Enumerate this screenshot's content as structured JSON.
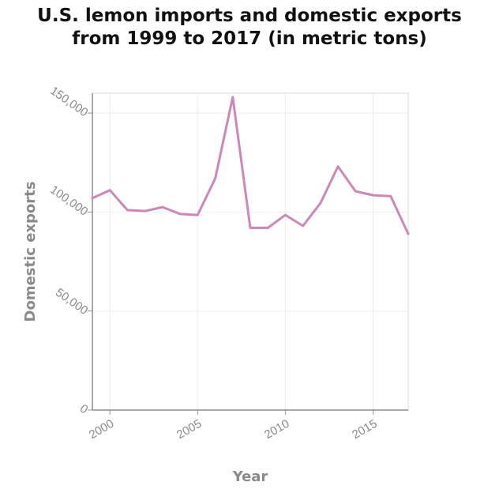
{
  "chart_data": {
    "type": "line",
    "title_lines": [
      "U.S. lemon imports and domestic exports",
      "from 1999 to 2017 (in metric tons)"
    ],
    "xlabel": "Year",
    "ylabel": "Domestic exports",
    "xlim": [
      1999,
      2017
    ],
    "ylim": [
      0,
      160000
    ],
    "x_ticks": [
      2000,
      2005,
      2010,
      2015
    ],
    "x_tick_labels": [
      "2000",
      "2005",
      "2010",
      "2015"
    ],
    "y_ticks": [
      0,
      50000,
      100000,
      150000
    ],
    "y_tick_labels": [
      "0",
      "50,000",
      "100,000",
      "150,000"
    ],
    "grid": true,
    "line_color": "#cc88b8",
    "series": [
      {
        "x": [
          1999,
          2000,
          2001,
          2002,
          2003,
          2004,
          2005,
          2006,
          2007,
          2008,
          2009,
          2010,
          2011,
          2012,
          2013,
          2014,
          2015,
          2016,
          2017
        ],
        "values": [
          107000,
          111000,
          101000,
          100500,
          102500,
          99000,
          98500,
          117000,
          158000,
          92000,
          92000,
          98500,
          93000,
          104500,
          123000,
          110500,
          108500,
          108000,
          89000
        ]
      }
    ]
  }
}
